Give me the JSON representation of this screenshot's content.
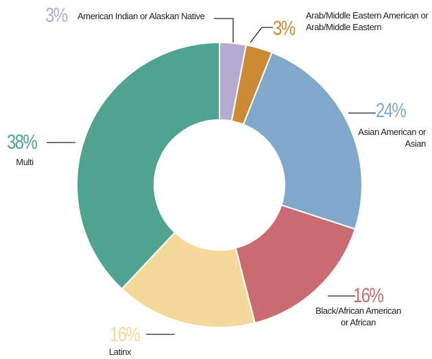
{
  "chart_data": {
    "type": "donut",
    "categories": [
      "American Indian or Alaskan Native",
      "Arab/Middle Eastern American or Arab/Middle Eastern",
      "Asian American or Asian",
      "Black/African American or African",
      "Latinx",
      "Multi"
    ],
    "values": [
      3,
      3,
      24,
      16,
      16,
      38
    ],
    "value_labels": [
      "3%",
      "3%",
      "24%",
      "16%",
      "16%",
      "38%"
    ],
    "colors": [
      "#b3acd0",
      "#cc8a35",
      "#7fa8cb",
      "#c96b70",
      "#f5d89c",
      "#4ea391"
    ]
  }
}
